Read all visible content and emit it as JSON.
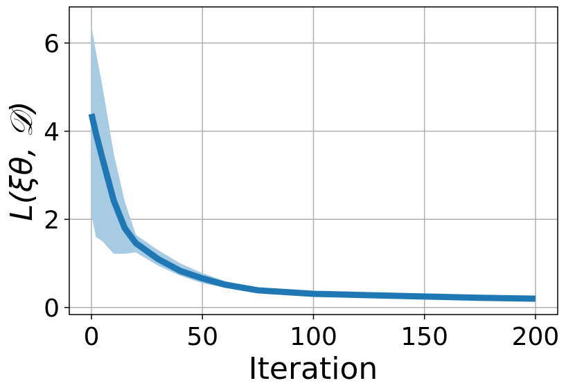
{
  "chart_data": {
    "type": "line",
    "xlabel": "Iteration",
    "ylabel": "L(ξθ, 𝒟)",
    "x": [
      0,
      2,
      5,
      10,
      15,
      20,
      30,
      40,
      50,
      60,
      75,
      100,
      125,
      150,
      175,
      200
    ],
    "series": [
      {
        "color": "#1f77b4",
        "band_color": "#a6cbe3",
        "values": [
          4.39,
          3.95,
          3.37,
          2.43,
          1.8,
          1.46,
          1.1,
          0.83,
          0.66,
          0.52,
          0.39,
          0.31,
          0.28,
          0.25,
          0.22,
          0.2
        ],
        "upper": [
          6.38,
          5.8,
          5.0,
          3.5,
          2.4,
          1.65,
          1.3,
          1.0,
          0.78,
          0.6,
          0.44,
          0.34,
          0.3,
          0.27,
          0.23,
          0.21
        ],
        "lower": [
          2.1,
          1.6,
          1.5,
          1.22,
          1.22,
          1.25,
          0.95,
          0.72,
          0.55,
          0.45,
          0.35,
          0.29,
          0.26,
          0.23,
          0.21,
          0.19
        ]
      }
    ],
    "xlim": [
      -10,
      210
    ],
    "ylim": [
      -0.16,
      6.82
    ],
    "xticks": [
      0,
      50,
      100,
      150,
      200
    ],
    "yticks": [
      0,
      2,
      4,
      6
    ],
    "grid": true
  }
}
